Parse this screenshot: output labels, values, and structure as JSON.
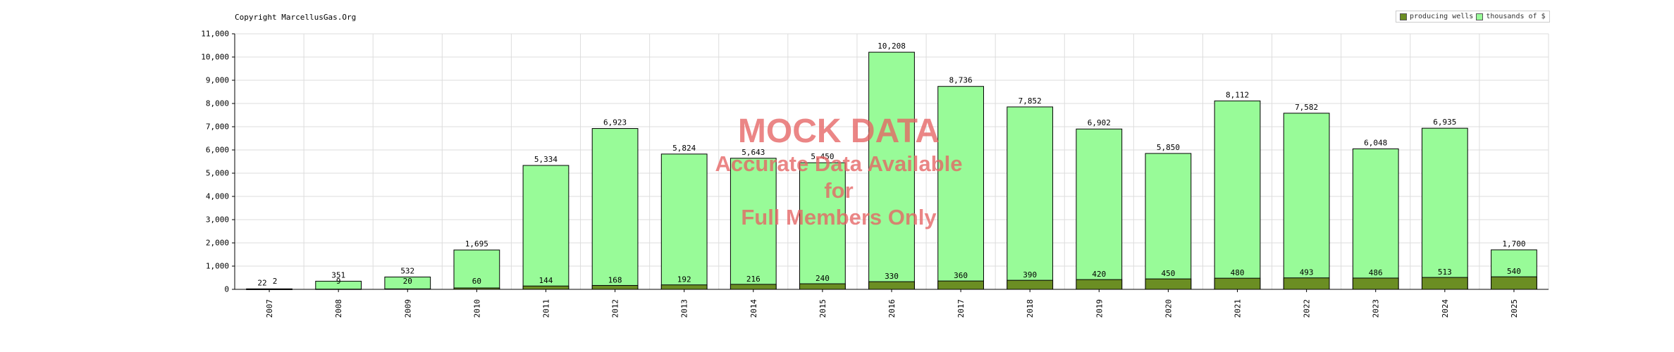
{
  "copyright": "Copyright MarcellusGas.Org",
  "watermark": {
    "title": "MOCK DATA",
    "line1": "Accurate Data Available",
    "line2": "for",
    "line3": "Full Members Only"
  },
  "colors": {
    "thousands": "#98fb98",
    "wells": "#6b8e23",
    "grid": "#dddddd",
    "watermark": "#e06464"
  },
  "chart_data": {
    "type": "bar",
    "title": "",
    "xlabel": "",
    "ylabel": "",
    "ylim": [
      0,
      11000
    ],
    "yticks": [
      "0",
      "1,000",
      "2,000",
      "3,000",
      "4,000",
      "5,000",
      "6,000",
      "7,000",
      "8,000",
      "9,000",
      "10,000",
      "11,000"
    ],
    "grid": true,
    "legend_position": "top-right",
    "categories": [
      "2007",
      "2008",
      "2009",
      "2010",
      "2011",
      "2012",
      "2013",
      "2014",
      "2015",
      "2016",
      "2017",
      "2018",
      "2019",
      "2020",
      "2021",
      "2022",
      "2023",
      "2024",
      "2025"
    ],
    "series": [
      {
        "name": "producing wells",
        "values": [
          2,
          9,
          20,
          60,
          144,
          168,
          192,
          216,
          240,
          330,
          360,
          390,
          420,
          450,
          480,
          493,
          486,
          513,
          540
        ],
        "labels": [
          "2",
          "9",
          "20",
          "60",
          "144",
          "168",
          "192",
          "216",
          "240",
          "330",
          "360",
          "390",
          "420",
          "450",
          "480",
          "493",
          "486",
          "513",
          "540"
        ]
      },
      {
        "name": "thousands of $",
        "values": [
          22,
          351,
          532,
          1695,
          5334,
          6923,
          5824,
          5643,
          5450,
          10208,
          8736,
          7852,
          6902,
          5850,
          8112,
          7582,
          6048,
          6935,
          1700
        ],
        "labels": [
          "22",
          "351",
          "532",
          "1,695",
          "5,334",
          "6,923",
          "5,824",
          "5,643",
          "5,450",
          "10,208",
          "8,736",
          "7,852",
          "6,902",
          "5,850",
          "8,112",
          "7,582",
          "6,048",
          "6,935",
          "1,700"
        ]
      }
    ]
  }
}
